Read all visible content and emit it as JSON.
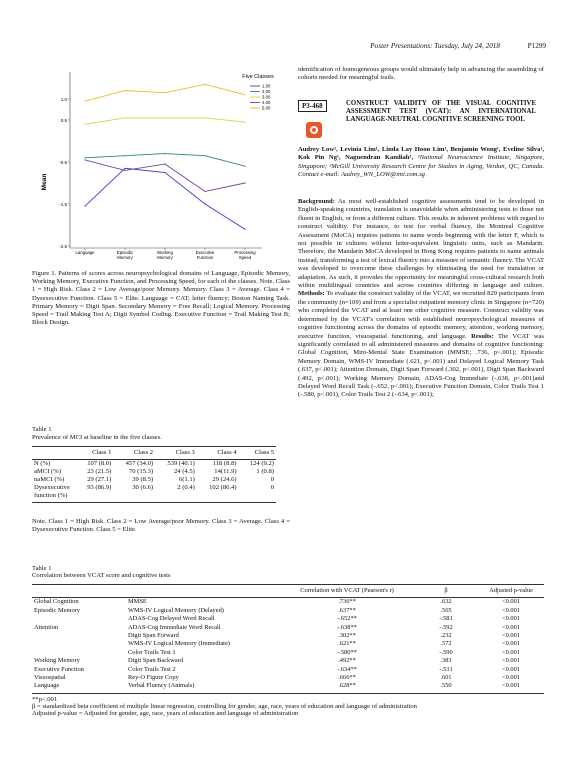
{
  "header": {
    "running_title": "Poster Presentations: Tuesday, July 24, 2018",
    "page_number": "P1299"
  },
  "chart_data": {
    "type": "line",
    "ylabel": "Mean",
    "legend_title": "Five Classes",
    "legend_placement": "top-right",
    "categories": [
      "Language",
      "Episodic Memory",
      "Working Memory",
      "Executive Function",
      "Processing Speed"
    ],
    "yticks": [
      "1.0",
      "0.5",
      "-0.5",
      "-1.5",
      "-2.5"
    ],
    "ylim": [
      -2.5,
      1.5
    ],
    "series": [
      {
        "name": "1.00",
        "color": "#3a3ad0",
        "values": [
          -1.55,
          -0.65,
          -0.75,
          -1.5,
          -2.1
        ]
      },
      {
        "name": "2.00",
        "color": "#2e8b57",
        "values": [
          -0.4,
          -0.35,
          -0.3,
          -0.35,
          -0.6
        ]
      },
      {
        "name": "3.00",
        "color": "#c8d84a",
        "values": [
          0.4,
          0.55,
          0.55,
          0.55,
          0.45
        ]
      },
      {
        "name": "4.00",
        "color": "#7a3fa0",
        "values": [
          -0.45,
          -0.7,
          -0.55,
          -1.2,
          -1.0
        ]
      },
      {
        "name": "5.00",
        "color": "#e6c020",
        "values": [
          0.95,
          1.2,
          1.15,
          1.35,
          1.1
        ]
      }
    ]
  },
  "figure": {
    "caption": "Figure 1. Patterns of scores across neuropsychological domains of Language, Episodic Memory, Working Memory, Executive Function, and Processing Speed, for each of the classes. Note. Class 1 = High Risk. Class 2 = Low Average/poor Memory. Memory. Class 3 = Average. Class 4 = Dysexecutive Function. Class 5 = Elite. Language = CAT; letter fluency; Boston Naming Task. Primary Memory = Digit Span. Secondary Memory = Free Recall; Logical Memory. Processing Speed = Trail Making Test A; Digit Symbol Coding. Executive Function = Trail Making Test B; Block Design."
  },
  "table_prev": {
    "title": "Table 1",
    "subtitle": "Prevalence of MCI at baseline in the five classes.",
    "headers": [
      "",
      "Class 1",
      "Class 2",
      "Class 3",
      "Class 4",
      "Class 5"
    ],
    "rows": [
      [
        "N (%)",
        "107 (8.0)",
        "457 (34.0)",
        "539 (40.1)",
        "118 (8.8)",
        "124 (9.2)"
      ],
      [
        "aMCI (%)",
        "23 (21.5)",
        "70 (15.3)",
        "24 (4.5)",
        "14(11.9)",
        "1 (0.8)"
      ],
      [
        "naMCI (%)",
        "29 (27.1)",
        "39 (8.5)",
        "6(1.1)",
        "29 (24.6)",
        "0"
      ],
      [
        "Dysexecutive function (%)",
        "93 (86.9)",
        "30 (6.6)",
        "2 (0.4)",
        "102 (86.4)",
        "0"
      ]
    ],
    "note": "Note. Class 1 = High Risk. Class 2 = Low Average/poor Memory. Class 3 = Average. Class 4 = Dysexecutive Function. Class 5 = Elite."
  },
  "right": {
    "intro": "identification of homogeneous groups would ultimately help in advancing the assembling of cohorts needed for meaningful trails.",
    "abstract_id": "P3-468",
    "abstract_title": "CONSTRUCT VALIDITY OF THE VISUAL COGNITIVE ASSESSMENT TEST (VCAT): AN INTERNATIONAL LANGUAGE-NEUTRAL COGNITIVE SCREENING TOOL",
    "authors": "Audrey Low¹, Levinia Lim¹, Linda Lay Hoon Lim¹, Benjamin Wong¹, Eveline Silva¹, Kok Pin Ng¹, Naguendran Kandiah¹, ",
    "affiliation": "¹National Neuroscience Institute, Singapore, Singapore; ²McGill University Research Centre for Studies in Aging, Verdun, QC, Canada. Contact e-mail: Audrey_WN_LOW@nni.com.sg",
    "background_label": "Background:",
    "background_text": " As most well-established cognitive assessments tend to be developed in English-speaking countries, translation is unavoidable when administering tests to those not fluent in English, or from a different culture. This results in inherent problems with regard to construct validity. For instance, to test for verbal fluency, the Montreal Cognitive Assessment (MoCA) requires patients to name words beginning with the letter F, which is not possible in cultures without letter-equivalent linguistic units, such as Mandarin. Therefore, the Mandarin MoCA developed in Hong Kong requires patients to name animals instead, transforming a test of lexical fluency into a measure of semantic fluency. The VCAT was developed to overcome these challenges by eliminating the need for translation or adaptation. As such, it provides the opportunity for meaningful cross-cultural research both within multilingual countries and across countries differing in language and culture.",
    "methods_label": "Methods:",
    "methods_text": " To evaluate the construct validity of the VCAT, we recruited 829 participants from the community (n=109) and from a specialist outpatient memory clinic in Singapore (n=720) who completed the VCAT and at least one other cognitive measure. Construct validity was determined by the VCAT's correlation with established neuropsychological measures of cognitive functioning across the domains of episodic memory, attention, working memory, executive function, visuospatial functioning, and language.",
    "results_label": "Results:",
    "results_text": " The VCAT was significantly correlated to all administered measures and domains of cognitive functioning: Global Cognition, Mini-Mental State Examination (MMSE; .736, p<.001); Episodic Memory Domain, WMS-IV Immediate (.621, p<.001) and Delayed Logical Memory Task (.637, p<.001); Attention Domain, Digit Span Forward (.302, p<.001), Digit Span Backward (.492, p<.001); Working Memory Domain, ADAS-Cog Immediate (-.638, p<.001)and Delayed Word Recall Task (-.652, p<.001); Executive Function Domain, Color Trails Test 1 (-.580, p<.001), Color Trails Test 2 (-.634, p<.001);"
  },
  "table_corr": {
    "title": "Table 1",
    "subtitle": "Correlation between VCAT score and cognitive tests",
    "headers": [
      "",
      "",
      "Correlation with VCAT (Pearson's r)",
      "β",
      "Adjusted p-value"
    ],
    "rows": [
      [
        "Global Cognition",
        "MMSE",
        ".736**",
        ".632",
        "<0.001"
      ],
      [
        "Episodic Memory",
        "WMS-IV Logical Memory (Delayed)",
        ".637**",
        ".565",
        "<0.001"
      ],
      [
        "",
        "ADAS-Cog Delayed Word Recall",
        "-.652**",
        "-.581",
        "<0.001"
      ],
      [
        "Attention",
        "ADAS-Cog Immediate Word Recall",
        "-.638**",
        "-.592",
        "<0.001"
      ],
      [
        "",
        "Digit Span Forward",
        ".302**",
        ".232",
        "<0.001"
      ],
      [
        "",
        "WMS-IV Logical Memory (Immediate)",
        ".621**",
        ".572",
        "<0.001"
      ],
      [
        "",
        "Color Trails Test 1",
        "-.580**",
        "-.590",
        "<0.001"
      ],
      [
        "Working Memory",
        "Digit Span Backward",
        ".492**",
        ".383",
        "<0.001"
      ],
      [
        "Executive Function",
        "Color Trails Test 2",
        "-.634**",
        "-.531",
        "<0.001"
      ],
      [
        "Visuospatial",
        "Rey-O Figure Copy",
        ".666**",
        ".601",
        "<0.001"
      ],
      [
        "Language",
        "Verbal Fluency (Animals)",
        ".628**",
        ".550",
        "<0.001"
      ]
    ],
    "notes": [
      "**p<.001",
      "β = standardized beta coefficient of multiple linear regression, controlling for gender, age, race, years of education and language of administration",
      "Adjusted p-value = Adjusted for gender, age, race, years of education and language of administration"
    ]
  }
}
